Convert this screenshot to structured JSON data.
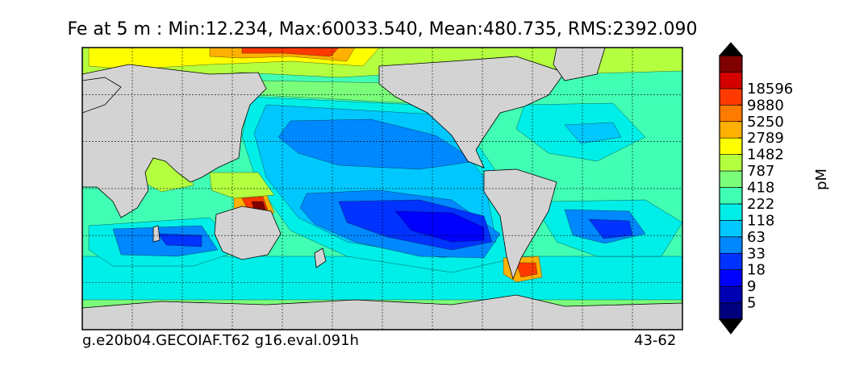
{
  "title": "Fe at 5 m : Min:12.234, Max:60033.540, Mean:480.735, RMS:2392.090",
  "run_label": "g.e20b04.GECOIAF.T62 g16.eval.091h",
  "year_label": "43-62",
  "chart_data": {
    "type": "heatmap",
    "title": "Fe at 5 m : Min:12.234, Max:60033.540, Mean:480.735, RMS:2392.090",
    "variable": "Fe",
    "depth": "5 m",
    "stats": {
      "min": 12.234,
      "max": 60033.54,
      "mean": 480.735,
      "rms": 2392.09
    },
    "colorbar": {
      "unit": "pM",
      "extend": "both",
      "tick_labels": [
        "5",
        "9",
        "18",
        "33",
        "63",
        "118",
        "222",
        "418",
        "787",
        "1482",
        "2789",
        "5250",
        "9880",
        "18596"
      ],
      "colors": [
        "#00007f",
        "#0000b3",
        "#0000ff",
        "#0033ff",
        "#0088ff",
        "#00c8ff",
        "#00eee8",
        "#40ffb4",
        "#7bff7b",
        "#b4ff40",
        "#ffff00",
        "#ffb000",
        "#ff7a00",
        "#ff3a00",
        "#d40000",
        "#800000"
      ]
    },
    "land_color": "#d3d3d3",
    "grid": true
  }
}
